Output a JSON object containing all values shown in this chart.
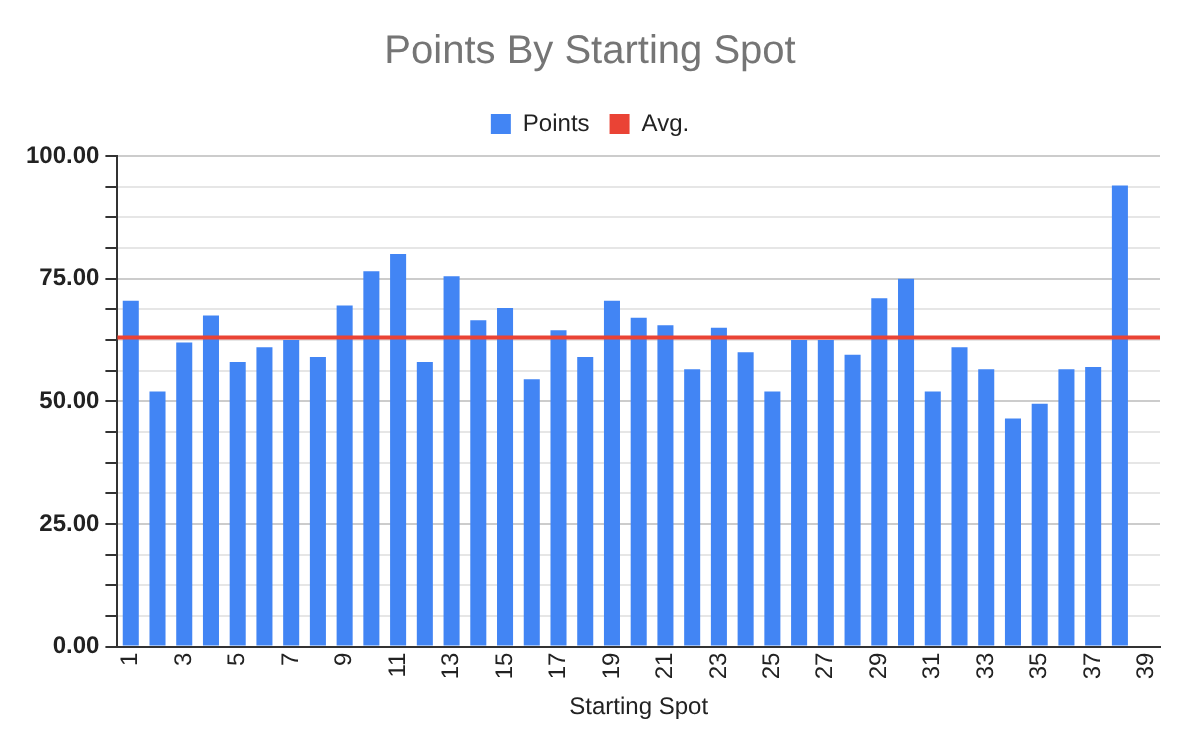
{
  "chart_data": {
    "type": "bar",
    "title": "Points By Starting Spot",
    "xlabel": "Starting Spot",
    "categories": [
      "1",
      null,
      "3",
      null,
      "5",
      null,
      "7",
      null,
      "9",
      null,
      "11",
      null,
      "13",
      null,
      "15",
      null,
      "17",
      null,
      "19",
      null,
      "21",
      null,
      "23",
      null,
      "25",
      null,
      "27",
      null,
      "29",
      null,
      "31",
      null,
      "33",
      null,
      "35",
      null,
      "37",
      null,
      "39"
    ],
    "series": [
      {
        "name": "Points",
        "color": "#4285f4",
        "values": [
          70.5,
          52,
          62,
          67.5,
          58,
          61,
          62.5,
          59,
          69.5,
          76.5,
          80,
          58,
          75.5,
          66.5,
          69,
          54.5,
          64.5,
          59,
          70.5,
          67,
          65.5,
          56.5,
          65,
          60,
          52,
          62.5,
          62.5,
          59.5,
          71,
          75,
          52,
          61,
          56.5,
          46.5,
          49.5,
          56.5,
          57,
          94,
          null
        ]
      }
    ],
    "ref_lines": [
      {
        "axis": "y",
        "value": 63,
        "label": "Avg.",
        "color": "#ea4335"
      }
    ],
    "ylim": [
      0,
      100
    ],
    "yticks": [
      {
        "value": 0,
        "label": "0.00"
      },
      {
        "value": 6.25,
        "label": null
      },
      {
        "value": 12.5,
        "label": null
      },
      {
        "value": 18.75,
        "label": null
      },
      {
        "value": 25,
        "label": "25.00"
      },
      {
        "value": 31.25,
        "label": null
      },
      {
        "value": 37.5,
        "label": null
      },
      {
        "value": 43.75,
        "label": null
      },
      {
        "value": 50,
        "label": "50.00"
      },
      {
        "value": 56.25,
        "label": null
      },
      {
        "value": 62.5,
        "label": null
      },
      {
        "value": 68.75,
        "label": null
      },
      {
        "value": 75,
        "label": "75.00"
      },
      {
        "value": 81.25,
        "label": null
      },
      {
        "value": 87.5,
        "label": null
      },
      {
        "value": 93.75,
        "label": null
      },
      {
        "value": 100,
        "label": "100.00"
      }
    ],
    "grid": "y",
    "legend": "top"
  }
}
